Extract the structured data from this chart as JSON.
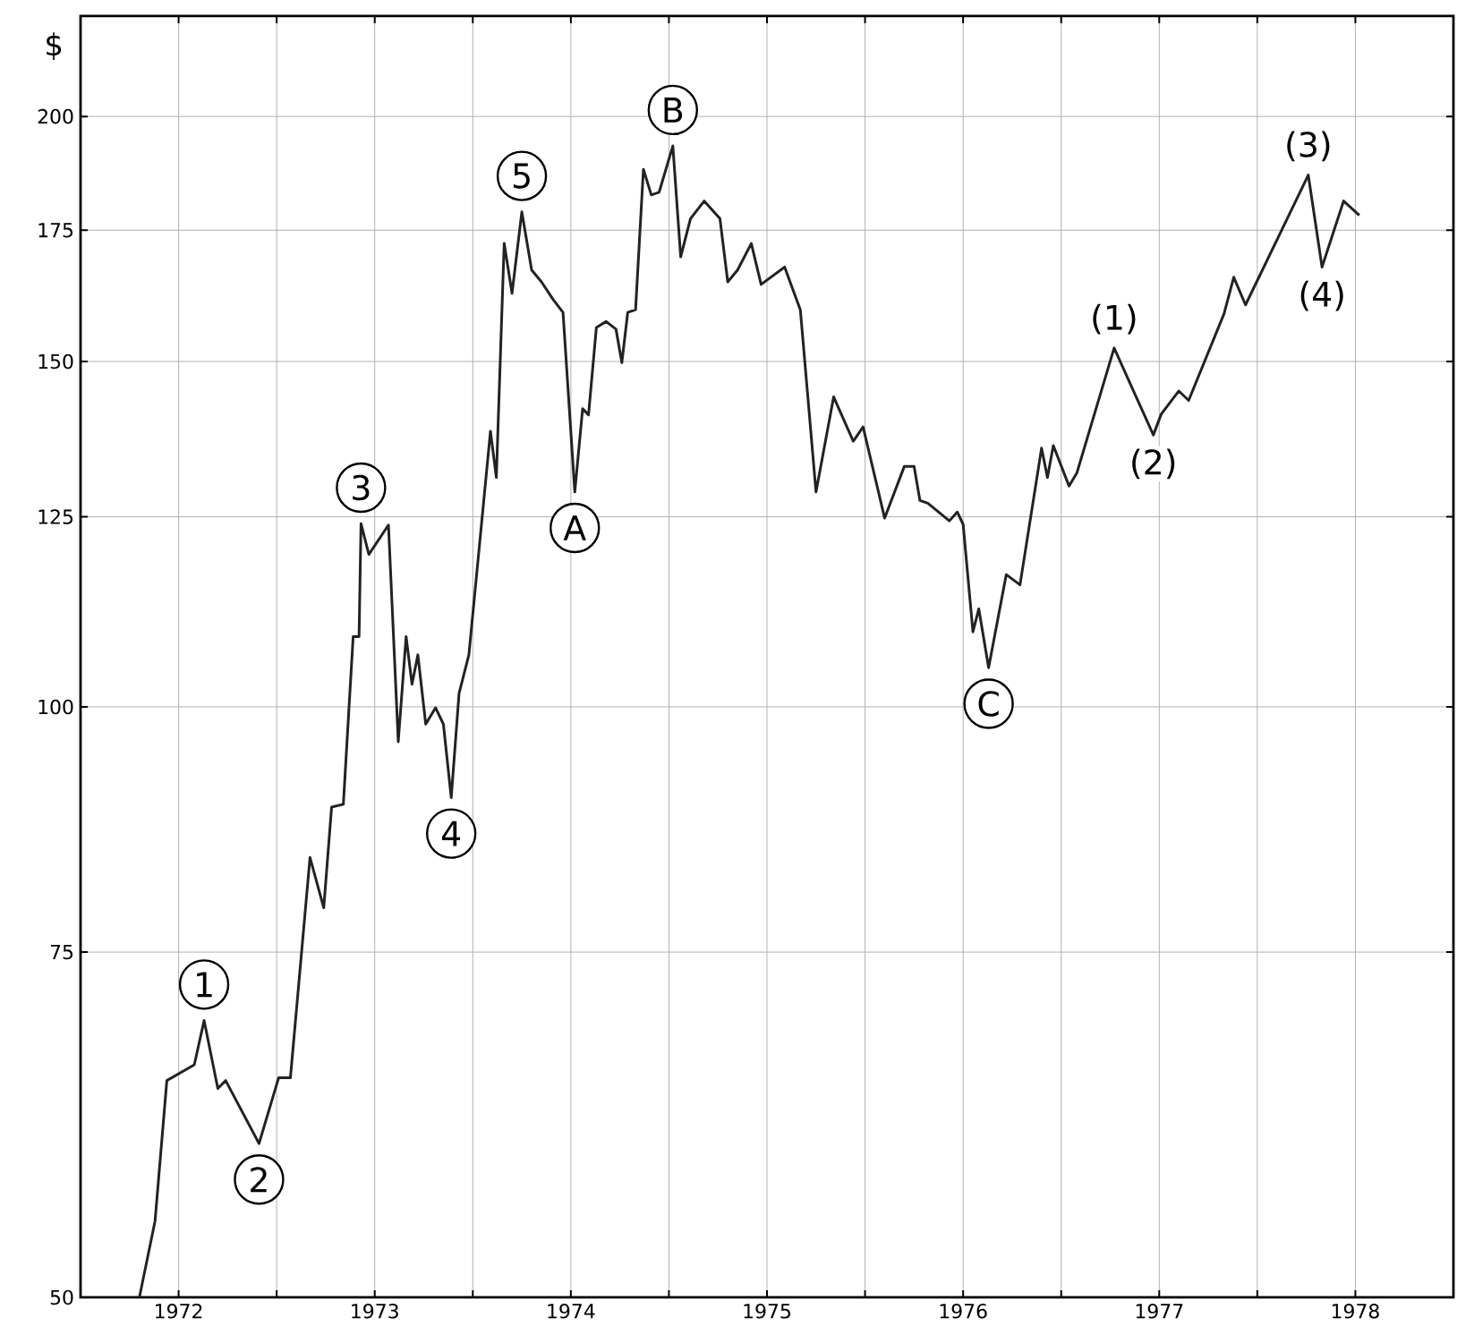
{
  "chart_data": {
    "type": "line",
    "ylabel": "$",
    "log": "y",
    "xlim": [
      1972,
      1979
    ],
    "ylim": [
      50,
      225
    ],
    "xticks": [
      {
        "value": 1972.5,
        "label": "1972"
      },
      {
        "value": 1973,
        "label": null
      },
      {
        "value": 1973.5,
        "label": "1973"
      },
      {
        "value": 1974,
        "label": null
      },
      {
        "value": 1974.5,
        "label": "1974"
      },
      {
        "value": 1975,
        "label": null
      },
      {
        "value": 1975.5,
        "label": "1975"
      },
      {
        "value": 1976,
        "label": null
      },
      {
        "value": 1976.5,
        "label": "1976"
      },
      {
        "value": 1977,
        "label": null
      },
      {
        "value": 1977.5,
        "label": "1977"
      },
      {
        "value": 1978,
        "label": null
      },
      {
        "value": 1978.5,
        "label": "1978"
      }
    ],
    "yticks": [
      50,
      75,
      100,
      125,
      150,
      175,
      200
    ],
    "grid": true,
    "marker": "none",
    "line_style": "solid",
    "series": [
      {
        "color": "#222222",
        "x": [
          1972.3,
          1972.38,
          1972.44,
          1972.58,
          1972.63,
          1972.7,
          1972.74,
          1972.91,
          1973.01,
          1973.07,
          1973.17,
          1973.24,
          1973.28,
          1973.34,
          1973.39,
          1973.42,
          1973.43,
          1973.47,
          1973.57,
          1973.62,
          1973.66,
          1973.69,
          1973.72,
          1973.76,
          1973.81,
          1973.85,
          1973.89,
          1973.93,
          1973.98,
          1974.09,
          1974.12,
          1974.16,
          1974.2,
          1974.25,
          1974.3,
          1974.35,
          1974.41,
          1974.46,
          1974.52,
          1974.56,
          1974.59,
          1974.63,
          1974.68,
          1974.73,
          1974.76,
          1974.79,
          1974.83,
          1974.87,
          1974.91,
          1974.95,
          1975.02,
          1975.06,
          1975.11,
          1975.18,
          1975.26,
          1975.3,
          1975.35,
          1975.42,
          1975.47,
          1975.59,
          1975.67,
          1975.75,
          1975.84,
          1975.94,
          1975.99,
          1976.1,
          1976.2,
          1976.25,
          1976.28,
          1976.32,
          1976.43,
          1976.47,
          1976.5,
          1976.55,
          1976.58,
          1976.63,
          1976.72,
          1976.79,
          1976.9,
          1976.93,
          1976.96,
          1977.04,
          1977.08,
          1977.27,
          1977.47,
          1977.51,
          1977.6,
          1977.65,
          1977.83,
          1977.88,
          1977.94,
          1978.26,
          1978.33,
          1978.44,
          1978.52
        ],
        "values": [
          50,
          54.7,
          64.5,
          65.7,
          69.2,
          63.9,
          64.5,
          59.9,
          64.7,
          64.7,
          83.8,
          79.0,
          88.9,
          89.2,
          108.6,
          108.6,
          124.0,
          119.6,
          123.8,
          96.0,
          108.6,
          102.7,
          106.3,
          98.0,
          99.9,
          98.0,
          89.9,
          101.6,
          106.3,
          138.2,
          130.9,
          172.3,
          162.5,
          178.8,
          167.0,
          164.7,
          161.3,
          158.9,
          128.7,
          141.9,
          140.9,
          156.1,
          157.2,
          155.8,
          149.8,
          158.9,
          159.4,
          188.0,
          182.4,
          183.0,
          193.2,
          169.6,
          177.4,
          181.1,
          177.4,
          164.7,
          167.0,
          172.3,
          164.2,
          167.6,
          159.4,
          128.7,
          143.9,
          136.6,
          138.9,
          124.8,
          132.6,
          132.6,
          127.4,
          127.0,
          124.4,
          125.7,
          123.9,
          109.2,
          112.2,
          104.7,
          116.8,
          115.4,
          135.5,
          130.9,
          135.9,
          129.6,
          131.6,
          152.4,
          137.6,
          141.0,
          144.9,
          143.3,
          158.6,
          165.6,
          160.3,
          186.7,
          167.6,
          181.1,
          178.1
        ]
      }
    ],
    "annotations": [
      {
        "text": "1",
        "x": 1972.63,
        "y": 69.2
      },
      {
        "text": "2",
        "x": 1972.91,
        "y": 59.9
      },
      {
        "text": "3",
        "x": 1973.43,
        "y": 124.0
      },
      {
        "text": "4",
        "x": 1973.89,
        "y": 89.9
      },
      {
        "text": "5",
        "x": 1974.25,
        "y": 178.8
      },
      {
        "text": "A",
        "x": 1974.52,
        "y": 128.7
      },
      {
        "text": "B",
        "x": 1975.02,
        "y": 193.2
      },
      {
        "text": "C",
        "x": 1976.63,
        "y": 104.7
      },
      {
        "text": "(1)",
        "x": 1977.27,
        "y": 152.4
      },
      {
        "text": "(2)",
        "x": 1977.47,
        "y": 137.6
      },
      {
        "text": "(3)",
        "x": 1978.26,
        "y": 186.7
      },
      {
        "text": "(4)",
        "x": 1978.33,
        "y": 167.6
      }
    ]
  }
}
